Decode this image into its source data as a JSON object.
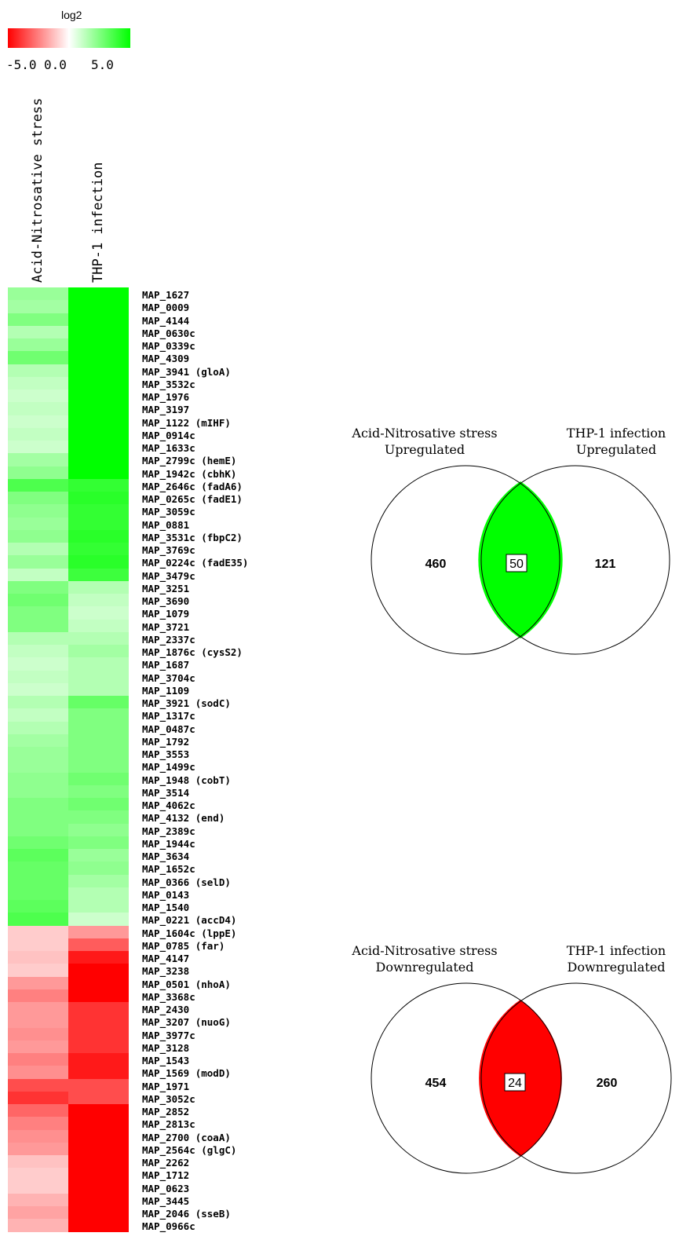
{
  "legend": {
    "title": "log2",
    "min_label": "-5.0",
    "mid_label": "0.0",
    "max_label": "5.0",
    "low_color": "#ff0000",
    "mid_color": "#ffffff",
    "high_color": "#00ff00"
  },
  "chart_data": [
    {
      "type": "heatmap",
      "columns": [
        "Acid-Nitrosative stress",
        "THP-1 infection"
      ],
      "value_range": [
        -5,
        5
      ],
      "rows": [
        {
          "gene": "MAP_1627",
          "values": [
            2.0,
            5.0
          ]
        },
        {
          "gene": "MAP_0009",
          "values": [
            1.8,
            5.0
          ]
        },
        {
          "gene": "MAP_4144",
          "values": [
            2.5,
            5.0
          ]
        },
        {
          "gene": "MAP_0630c",
          "values": [
            1.5,
            5.0
          ]
        },
        {
          "gene": "MAP_0339c",
          "values": [
            2.0,
            5.0
          ]
        },
        {
          "gene": "MAP_4309",
          "values": [
            2.8,
            5.0
          ]
        },
        {
          "gene": "MAP_3941 (gloA)",
          "values": [
            1.5,
            5.0
          ]
        },
        {
          "gene": "MAP_3532c",
          "values": [
            1.2,
            5.0
          ]
        },
        {
          "gene": "MAP_1976",
          "values": [
            1.0,
            5.0
          ]
        },
        {
          "gene": "MAP_3197",
          "values": [
            1.2,
            5.0
          ]
        },
        {
          "gene": "MAP_1122 (mIHF)",
          "values": [
            1.0,
            5.0
          ]
        },
        {
          "gene": "MAP_0914c",
          "values": [
            1.2,
            5.0
          ]
        },
        {
          "gene": "MAP_1633c",
          "values": [
            1.0,
            5.0
          ]
        },
        {
          "gene": "MAP_2799c (hemE)",
          "values": [
            1.8,
            5.0
          ]
        },
        {
          "gene": "MAP_1942c (cbhK)",
          "values": [
            2.2,
            5.0
          ]
        },
        {
          "gene": "MAP_2646c (fadA6)",
          "values": [
            3.5,
            4.0
          ]
        },
        {
          "gene": "MAP_0265c (fadE1)",
          "values": [
            2.5,
            4.2
          ]
        },
        {
          "gene": "MAP_3059c",
          "values": [
            2.2,
            4.0
          ]
        },
        {
          "gene": "MAP_0881",
          "values": [
            2.0,
            4.0
          ]
        },
        {
          "gene": "MAP_3531c (fbpC2)",
          "values": [
            2.2,
            4.2
          ]
        },
        {
          "gene": "MAP_3769c",
          "values": [
            1.5,
            4.0
          ]
        },
        {
          "gene": "MAP_0224c (fadE35)",
          "values": [
            2.0,
            4.2
          ]
        },
        {
          "gene": "MAP_3479c",
          "values": [
            1.2,
            3.8
          ]
        },
        {
          "gene": "MAP_3251",
          "values": [
            2.5,
            1.5
          ]
        },
        {
          "gene": "MAP_3690",
          "values": [
            2.8,
            1.2
          ]
        },
        {
          "gene": "MAP_1079",
          "values": [
            2.5,
            1.0
          ]
        },
        {
          "gene": "MAP_3721",
          "values": [
            2.5,
            1.2
          ]
        },
        {
          "gene": "MAP_2337c",
          "values": [
            1.5,
            1.5
          ]
        },
        {
          "gene": "MAP_1876c (cysS2)",
          "values": [
            1.2,
            1.8
          ]
        },
        {
          "gene": "MAP_1687",
          "values": [
            1.0,
            1.5
          ]
        },
        {
          "gene": "MAP_3704c",
          "values": [
            1.2,
            1.5
          ]
        },
        {
          "gene": "MAP_1109",
          "values": [
            1.0,
            1.5
          ]
        },
        {
          "gene": "MAP_3921 (sodC)",
          "values": [
            1.5,
            3.0
          ]
        },
        {
          "gene": "MAP_1317c",
          "values": [
            1.2,
            2.5
          ]
        },
        {
          "gene": "MAP_0487c",
          "values": [
            1.5,
            2.5
          ]
        },
        {
          "gene": "MAP_1792",
          "values": [
            1.8,
            2.5
          ]
        },
        {
          "gene": "MAP_3553",
          "values": [
            2.0,
            2.5
          ]
        },
        {
          "gene": "MAP_1499c",
          "values": [
            2.0,
            2.5
          ]
        },
        {
          "gene": "MAP_1948 (cobT)",
          "values": [
            2.2,
            2.8
          ]
        },
        {
          "gene": "MAP_3514",
          "values": [
            2.2,
            2.5
          ]
        },
        {
          "gene": "MAP_4062c",
          "values": [
            2.5,
            2.8
          ]
        },
        {
          "gene": "MAP_4132 (end)",
          "values": [
            2.5,
            2.5
          ]
        },
        {
          "gene": "MAP_2389c",
          "values": [
            2.5,
            2.2
          ]
        },
        {
          "gene": "MAP_1944c",
          "values": [
            2.8,
            2.5
          ]
        },
        {
          "gene": "MAP_3634",
          "values": [
            3.2,
            2.0
          ]
        },
        {
          "gene": "MAP_1652c",
          "values": [
            3.0,
            2.2
          ]
        },
        {
          "gene": "MAP_0366 (selD)",
          "values": [
            3.0,
            1.8
          ]
        },
        {
          "gene": "MAP_0143",
          "values": [
            3.0,
            1.5
          ]
        },
        {
          "gene": "MAP_1540",
          "values": [
            3.2,
            1.5
          ]
        },
        {
          "gene": "MAP_0221 (accD4)",
          "values": [
            3.5,
            1.0
          ]
        },
        {
          "gene": "MAP_1604c (lppE)",
          "values": [
            -1.0,
            -2.0
          ]
        },
        {
          "gene": "MAP_0785 (far)",
          "values": [
            -1.0,
            -3.2
          ]
        },
        {
          "gene": "MAP_4147",
          "values": [
            -1.2,
            -4.5
          ]
        },
        {
          "gene": "MAP_3238",
          "values": [
            -1.0,
            -5.0
          ]
        },
        {
          "gene": "MAP_0501 (nhoA)",
          "values": [
            -2.0,
            -5.0
          ]
        },
        {
          "gene": "MAP_3368c",
          "values": [
            -2.5,
            -5.0
          ]
        },
        {
          "gene": "MAP_2430",
          "values": [
            -2.0,
            -4.0
          ]
        },
        {
          "gene": "MAP_3207 (nuoG)",
          "values": [
            -2.0,
            -4.0
          ]
        },
        {
          "gene": "MAP_3977c",
          "values": [
            -2.2,
            -4.0
          ]
        },
        {
          "gene": "MAP_3128",
          "values": [
            -2.0,
            -4.0
          ]
        },
        {
          "gene": "MAP_1543",
          "values": [
            -2.5,
            -4.5
          ]
        },
        {
          "gene": "MAP_1569 (modD)",
          "values": [
            -2.2,
            -4.5
          ]
        },
        {
          "gene": "MAP_1971",
          "values": [
            -3.5,
            -3.5
          ]
        },
        {
          "gene": "MAP_3052c",
          "values": [
            -4.0,
            -3.5
          ]
        },
        {
          "gene": "MAP_2852",
          "values": [
            -3.0,
            -5.0
          ]
        },
        {
          "gene": "MAP_2813c",
          "values": [
            -2.5,
            -5.0
          ]
        },
        {
          "gene": "MAP_2700 (coaA)",
          "values": [
            -2.2,
            -5.0
          ]
        },
        {
          "gene": "MAP_2564c (glgC)",
          "values": [
            -2.0,
            -5.0
          ]
        },
        {
          "gene": "MAP_2262",
          "values": [
            -1.2,
            -5.0
          ]
        },
        {
          "gene": "MAP_1712",
          "values": [
            -1.0,
            -5.0
          ]
        },
        {
          "gene": "MAP_0623",
          "values": [
            -1.0,
            -5.0
          ]
        },
        {
          "gene": "MAP_3445",
          "values": [
            -1.5,
            -5.0
          ]
        },
        {
          "gene": "MAP_2046 (sseB)",
          "values": [
            -1.8,
            -5.0
          ]
        },
        {
          "gene": "MAP_0966c",
          "values": [
            -1.5,
            -5.0
          ]
        }
      ]
    },
    {
      "type": "venn",
      "sets": [
        {
          "title": "Acid-Nitrosative stress",
          "subtitle": "Upregulated",
          "only": "460"
        },
        {
          "title": "THP-1 infection",
          "subtitle": "Upregulated",
          "only": "121"
        }
      ],
      "overlap": "50",
      "overlap_color": "#00ff00"
    },
    {
      "type": "venn",
      "sets": [
        {
          "title": "Acid-Nitrosative stress",
          "subtitle": "Downregulated",
          "only": "454"
        },
        {
          "title": "THP-1 infection",
          "subtitle": "Downregulated",
          "only": "260"
        }
      ],
      "overlap": "24",
      "overlap_color": "#ff0000"
    }
  ]
}
